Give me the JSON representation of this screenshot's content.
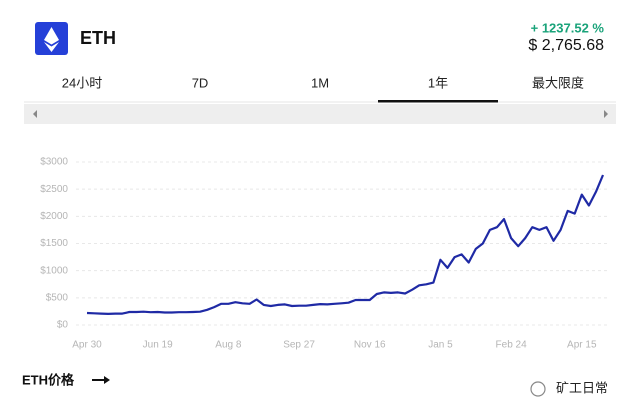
{
  "header": {
    "symbol": "ETH",
    "change": "+ 1237.52 %",
    "price": "$ 2,765.68"
  },
  "tabs": {
    "items": [
      "24小时",
      "7D",
      "1M",
      "1年",
      "最大限度"
    ],
    "selected": 3
  },
  "chart_data": {
    "type": "line",
    "color": "#1f2aa5",
    "grid": true,
    "categories": [
      "Apr 30",
      null,
      null,
      null,
      null,
      null,
      null,
      null,
      null,
      null,
      "Jun 19",
      null,
      null,
      null,
      null,
      null,
      null,
      null,
      null,
      null,
      "Aug 8",
      null,
      null,
      null,
      null,
      null,
      null,
      null,
      null,
      null,
      "Sep 27",
      null,
      null,
      null,
      null,
      null,
      null,
      null,
      null,
      null,
      "Nov 16",
      null,
      null,
      null,
      null,
      null,
      null,
      null,
      null,
      null,
      "Jan 5",
      null,
      null,
      null,
      null,
      null,
      null,
      null,
      null,
      null,
      "Feb 24",
      null,
      null,
      null,
      null,
      null,
      null,
      null,
      null,
      null,
      "Apr 15",
      null,
      null,
      null
    ],
    "values": [
      220,
      215,
      210,
      205,
      210,
      210,
      240,
      240,
      245,
      235,
      240,
      230,
      230,
      235,
      235,
      240,
      245,
      280,
      330,
      390,
      390,
      420,
      400,
      390,
      470,
      370,
      350,
      370,
      380,
      350,
      355,
      355,
      370,
      385,
      380,
      390,
      400,
      410,
      460,
      460,
      460,
      570,
      600,
      590,
      600,
      580,
      650,
      730,
      750,
      780,
      1200,
      1050,
      1250,
      1300,
      1150,
      1400,
      1500,
      1750,
      1800,
      1950,
      1600,
      1450,
      1600,
      1800,
      1750,
      1800,
      1550,
      1750,
      2100,
      2050,
      2400,
      2200,
      2450,
      2760
    ],
    "ylim": [
      0,
      3000
    ],
    "yticks": [
      {
        "value": 0,
        "label": "$0"
      },
      {
        "value": 500,
        "label": "$500"
      },
      {
        "value": 1000,
        "label": "$1000"
      },
      {
        "value": 1500,
        "label": "$1500"
      },
      {
        "value": 2000,
        "label": "$2000"
      },
      {
        "value": 2500,
        "label": "$2500"
      },
      {
        "value": 3000,
        "label": "$3000"
      }
    ]
  },
  "footer": {
    "link": "ETH价格",
    "watermark": "矿工日常"
  }
}
